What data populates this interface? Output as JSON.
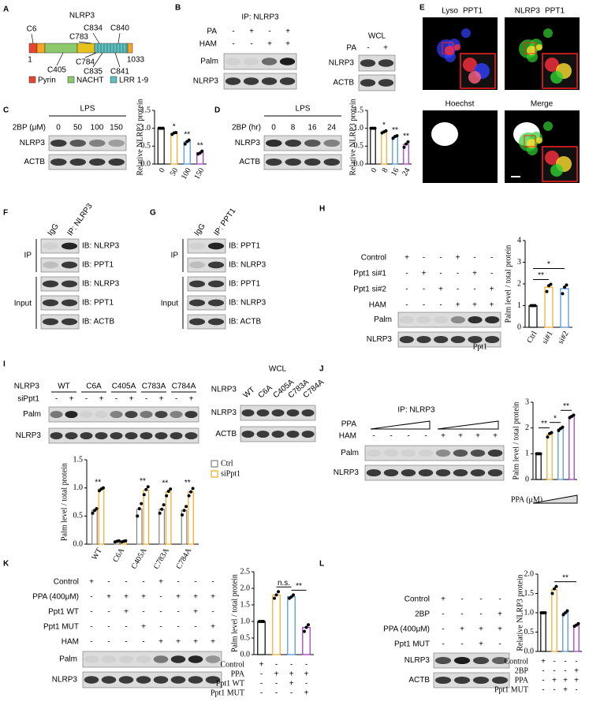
{
  "panels": {
    "A": {
      "letter": "A",
      "protein": "NLRP3",
      "sites": [
        "C6",
        "C834",
        "C840",
        "C783",
        "C784",
        "C405",
        "C835",
        "C841"
      ],
      "start": "1",
      "end": "1033",
      "legend": [
        "Pyrin",
        "NACHT",
        "LRR 1-9"
      ]
    },
    "B": {
      "letter": "B",
      "ip": "IP: NLRP3",
      "rows": [
        {
          "label": "PA",
          "signs": [
            "-",
            "+",
            "-",
            "+"
          ]
        },
        {
          "label": "HAM",
          "signs": [
            "-",
            "-",
            "+",
            "+"
          ]
        }
      ],
      "blots": [
        "Palm",
        "NLRP3"
      ],
      "wcl": {
        "title": "WCL",
        "rows": [
          {
            "label": "PA",
            "signs": [
              "-",
              "+"
            ]
          }
        ],
        "blots": [
          "NLRP3",
          "ACTB"
        ]
      }
    },
    "C": {
      "letter": "C",
      "treatment": "LPS",
      "row_label": "2BP (μM)",
      "lanes": [
        "0",
        "50",
        "100",
        "150"
      ],
      "blots": [
        "NLRP3",
        "ACTB"
      ]
    },
    "D": {
      "letter": "D",
      "treatment": "LPS",
      "row_label": "2BP (hr)",
      "lanes": [
        "0",
        "8",
        "16",
        "24"
      ],
      "blots": [
        "NLRP3",
        "ACTB"
      ]
    },
    "E": {
      "letter": "E",
      "images": [
        {
          "labels": [
            "Lyso",
            "PPT1"
          ]
        },
        {
          "labels": [
            "NLRP3",
            "PPT1"
          ]
        },
        {
          "labels": [
            "Hoechst"
          ]
        },
        {
          "labels": [
            "Merge"
          ]
        }
      ]
    },
    "F": {
      "letter": "F",
      "lanes": [
        "IgG",
        "IP: NLRP3"
      ],
      "groups": [
        "IP",
        "Input"
      ],
      "blots": [
        "IB: NLRP3",
        "IB: PPT1",
        "IB: NLRP3",
        "IB: PPT1",
        "IB: ACTB"
      ]
    },
    "G": {
      "letter": "G",
      "lanes": [
        "IgG",
        "IP: PPT1"
      ],
      "groups": [
        "IP",
        "Input"
      ],
      "blots": [
        "IB: PPT1",
        "IB: NLRP3",
        "IB: PPT1",
        "IB: NLRP3",
        "IB: ACTB"
      ]
    },
    "H": {
      "letter": "H",
      "rows": [
        {
          "label": "Control",
          "signs": [
            "+",
            "-",
            "-",
            "+",
            "-",
            "-"
          ]
        },
        {
          "label": "Ppt1 si#1",
          "signs": [
            "-",
            "+",
            "-",
            "-",
            "+",
            "-"
          ]
        },
        {
          "label": "Ppt1 si#2",
          "signs": [
            "-",
            "-",
            "+",
            "-",
            "-",
            "+"
          ]
        },
        {
          "label": "HAM",
          "signs": [
            "-",
            "-",
            "-",
            "+",
            "+",
            "+"
          ]
        }
      ],
      "blots": [
        "Palm",
        "NLRP3"
      ]
    },
    "I": {
      "letter": "I",
      "protein": "NLRP3",
      "groups": [
        "WT",
        "C6A",
        "C405A",
        "C783A",
        "C784A"
      ],
      "rows": [
        {
          "label": "siPpt1",
          "signs": [
            "-",
            "+",
            "-",
            "+",
            "-",
            "+",
            "-",
            "+",
            "-",
            "+"
          ]
        }
      ],
      "blots": [
        "Palm",
        "NLRP3"
      ],
      "wcl": {
        "title": "WCL",
        "row_label": "NLRP3",
        "lanes": [
          "WT",
          "C6A",
          "C405A",
          "C783A",
          "C784A"
        ],
        "blots": [
          "NLRP3",
          "ACTB"
        ]
      }
    },
    "J": {
      "letter": "J",
      "ip": "IP: NLRP3",
      "ramp_label": "PPA",
      "rows": [
        {
          "label": "HAM",
          "signs": [
            "-",
            "-",
            "-",
            "-",
            "+",
            "+",
            "+",
            "+"
          ]
        }
      ],
      "blots": [
        "Palm",
        "NLRP3"
      ]
    },
    "K": {
      "letter": "K",
      "rows": [
        {
          "label": "Control",
          "signs": [
            "+",
            "-",
            "-",
            "-",
            "+",
            "-",
            "-",
            "-"
          ]
        },
        {
          "label": "PPA (400μM)",
          "signs": [
            "-",
            "+",
            "+",
            "+",
            "-",
            "+",
            "+",
            "+"
          ]
        },
        {
          "label": "Ppt1 WT",
          "signs": [
            "-",
            "-",
            "+",
            "-",
            "-",
            "-",
            "+",
            "-"
          ]
        },
        {
          "label": "Ppt1 MUT",
          "signs": [
            "-",
            "-",
            "-",
            "+",
            "-",
            "-",
            "-",
            "+"
          ]
        },
        {
          "label": "HAM",
          "signs": [
            "-",
            "-",
            "-",
            "-",
            "+",
            "+",
            "+",
            "+"
          ]
        }
      ],
      "blots": [
        "Palm",
        "NLRP3"
      ]
    },
    "L": {
      "letter": "L",
      "rows": [
        {
          "label": "Control",
          "signs": [
            "+",
            "-",
            "-",
            "-"
          ]
        },
        {
          "label": "2BP",
          "signs": [
            "-",
            "-",
            "-",
            "+"
          ]
        },
        {
          "label": "PPA (400μM)",
          "signs": [
            "-",
            "+",
            "+",
            "+"
          ]
        },
        {
          "label": "Ppt1 MUT",
          "signs": [
            "-",
            "-",
            "+",
            "-"
          ]
        }
      ],
      "blots": [
        "NLRP3",
        "ACTB"
      ]
    }
  },
  "chart_data": [
    {
      "type": "bar",
      "ylabel": "Relative NLRP3 protein",
      "categories": [
        "0",
        "50",
        "100",
        "150"
      ],
      "values": [
        1.0,
        0.86,
        0.62,
        0.32
      ],
      "points": [
        [
          1.0,
          1.0,
          1.0
        ],
        [
          0.83,
          0.87,
          0.88
        ],
        [
          0.56,
          0.63,
          0.67
        ],
        [
          0.28,
          0.31,
          0.36
        ]
      ],
      "colors": [
        "#000000",
        "#f5a623",
        "#4a90d9",
        "#9b30c8"
      ],
      "annotations": [
        null,
        "*",
        "**",
        "**"
      ],
      "ylim": [
        0,
        1.5
      ],
      "yticks": [
        {
          "value": 0,
          "label": "0.0"
        },
        0.5,
        {
          "value": 1,
          "label": "1.0"
        },
        1.5
      ]
    },
    {
      "type": "bar",
      "ylabel": "Relative NLRP3 protein",
      "categories": [
        "0",
        "8",
        "16",
        "24"
      ],
      "values": [
        1.0,
        0.9,
        0.76,
        0.55
      ],
      "points": [
        [
          1.0,
          1.0,
          1.0
        ],
        [
          0.87,
          0.9,
          0.93
        ],
        [
          0.72,
          0.77,
          0.79
        ],
        [
          0.47,
          0.56,
          0.62
        ]
      ],
      "colors": [
        "#000000",
        "#f5a623",
        "#4a90d9",
        "#9b30c8"
      ],
      "annotations": [
        null,
        "*",
        "**",
        "**"
      ],
      "ylim": [
        0,
        1.5
      ],
      "yticks": [
        {
          "value": 0,
          "label": "0.0"
        },
        0.5,
        {
          "value": 1,
          "label": "1.0"
        },
        1.5
      ]
    },
    {
      "type": "bar",
      "ylabel": "Palm level / total protein",
      "categories": [
        "Ctrl",
        "si#1",
        "si#2"
      ],
      "xlabel": "Ppt1",
      "values": [
        1.0,
        1.85,
        1.78
      ],
      "points": [
        [
          1.0,
          1.0,
          1.0
        ],
        [
          1.65,
          1.92,
          1.98
        ],
        [
          1.55,
          1.85,
          1.95
        ]
      ],
      "colors": [
        "#000000",
        "#f5a623",
        "#4a90d9"
      ],
      "brackets": [
        "**",
        "*"
      ],
      "ylim": [
        0,
        4
      ],
      "yticks": [
        0,
        1,
        2,
        3,
        4
      ]
    },
    {
      "type": "bar",
      "ylabel": "Palm level / total protein",
      "categories": [
        "WT",
        "C6A",
        "C405A",
        "C783A",
        "C784A"
      ],
      "series": [
        {
          "name": "Ctrl",
          "color": "#808080",
          "values": [
            0.6,
            0.05,
            0.62,
            0.62,
            0.6
          ],
          "points": [
            [
              0.55,
              0.6,
              0.63
            ],
            [
              0.04,
              0.05,
              0.06
            ],
            [
              0.5,
              0.63,
              0.72
            ],
            [
              0.55,
              0.62,
              0.7
            ],
            [
              0.52,
              0.6,
              0.67
            ]
          ]
        },
        {
          "name": "siPpt1",
          "color": "#f5a623",
          "values": [
            0.98,
            0.05,
            0.96,
            0.93,
            0.93
          ],
          "points": [
            [
              0.95,
              0.98,
              1.0
            ],
            [
              0.04,
              0.05,
              0.06
            ],
            [
              0.88,
              0.97,
              1.02
            ],
            [
              0.86,
              0.94,
              0.98
            ],
            [
              0.86,
              0.93,
              0.99
            ]
          ]
        }
      ],
      "annotations": [
        "**",
        null,
        "**",
        "**",
        "**"
      ],
      "ylim": [
        0,
        1.5
      ],
      "yticks": [
        {
          "value": 0,
          "label": "0.0"
        },
        0.5,
        {
          "value": 1,
          "label": "1.0"
        },
        1.5
      ]
    },
    {
      "type": "bar",
      "ylabel": "Palm level / total protein",
      "xlabel": "PPA (μM)",
      "values": [
        1.0,
        1.75,
        1.97,
        2.45
      ],
      "points": [
        [
          1.0,
          1.0,
          1.0
        ],
        [
          1.65,
          1.78,
          1.82
        ],
        [
          1.9,
          1.98,
          2.03
        ],
        [
          2.4,
          2.45,
          2.5
        ]
      ],
      "colors": [
        "#000000",
        "#f5a623",
        "#4a90d9",
        "#9b30c8"
      ],
      "brackets": [
        "**",
        "*",
        "**"
      ],
      "ylim": [
        0,
        3
      ],
      "yticks": [
        0,
        1,
        2,
        3
      ]
    },
    {
      "type": "bar",
      "ylabel": "Palm level / total protein",
      "values": [
        1.0,
        1.8,
        1.75,
        0.82
      ],
      "points": [
        [
          1.0,
          1.0,
          1.0
        ],
        [
          1.7,
          1.8,
          1.9
        ],
        [
          1.7,
          1.74,
          1.8
        ],
        [
          0.7,
          0.82,
          0.9
        ]
      ],
      "colors": [
        "#000000",
        "#f5a623",
        "#4a90d9",
        "#9b30c8"
      ],
      "brackets": [
        "n.s.",
        "**"
      ],
      "x_table": [
        {
          "label": "Control",
          "signs": [
            "+",
            "-",
            "-",
            "-"
          ]
        },
        {
          "label": "PPA",
          "signs": [
            "-",
            "+",
            "+",
            "+"
          ]
        },
        {
          "label": "Ppt1 WT",
          "signs": [
            "-",
            "-",
            "+",
            "-"
          ]
        },
        {
          "label": "Ppt1 MUT",
          "signs": [
            "-",
            "-",
            "-",
            "+"
          ]
        }
      ],
      "ylim": [
        0,
        2.5
      ],
      "yticks": [
        {
          "value": 0,
          "label": "0.0"
        },
        0.5,
        {
          "value": 1,
          "label": "1.0"
        },
        1.5,
        {
          "value": 2,
          "label": "2.0"
        },
        2.5
      ]
    },
    {
      "type": "bar",
      "ylabel": "Relative NLRP3 protein",
      "values": [
        1.0,
        1.6,
        1.0,
        0.68
      ],
      "points": [
        [
          1.0,
          1.0,
          1.0
        ],
        [
          1.5,
          1.62,
          1.68
        ],
        [
          0.95,
          1.0,
          1.05
        ],
        [
          0.65,
          0.68,
          0.72
        ]
      ],
      "colors": [
        "#000000",
        "#f5a623",
        "#4a90d9",
        "#9b30c8"
      ],
      "brackets": [
        "**"
      ],
      "x_table": [
        {
          "label": "Control",
          "signs": [
            "+",
            "-",
            "-",
            "-"
          ]
        },
        {
          "label": "2BP",
          "signs": [
            "-",
            "-",
            "-",
            "+"
          ]
        },
        {
          "label": "PPA",
          "signs": [
            "-",
            "+",
            "+",
            "+"
          ]
        },
        {
          "label": "Ppt1 MUT",
          "signs": [
            "-",
            "-",
            "+",
            "-"
          ]
        }
      ],
      "ylim": [
        0,
        2
      ],
      "yticks": [
        {
          "value": 0,
          "label": "0.0"
        },
        0.5,
        {
          "value": 1,
          "label": "1.0"
        },
        1.5,
        {
          "value": 2,
          "label": "2.0"
        }
      ]
    }
  ]
}
